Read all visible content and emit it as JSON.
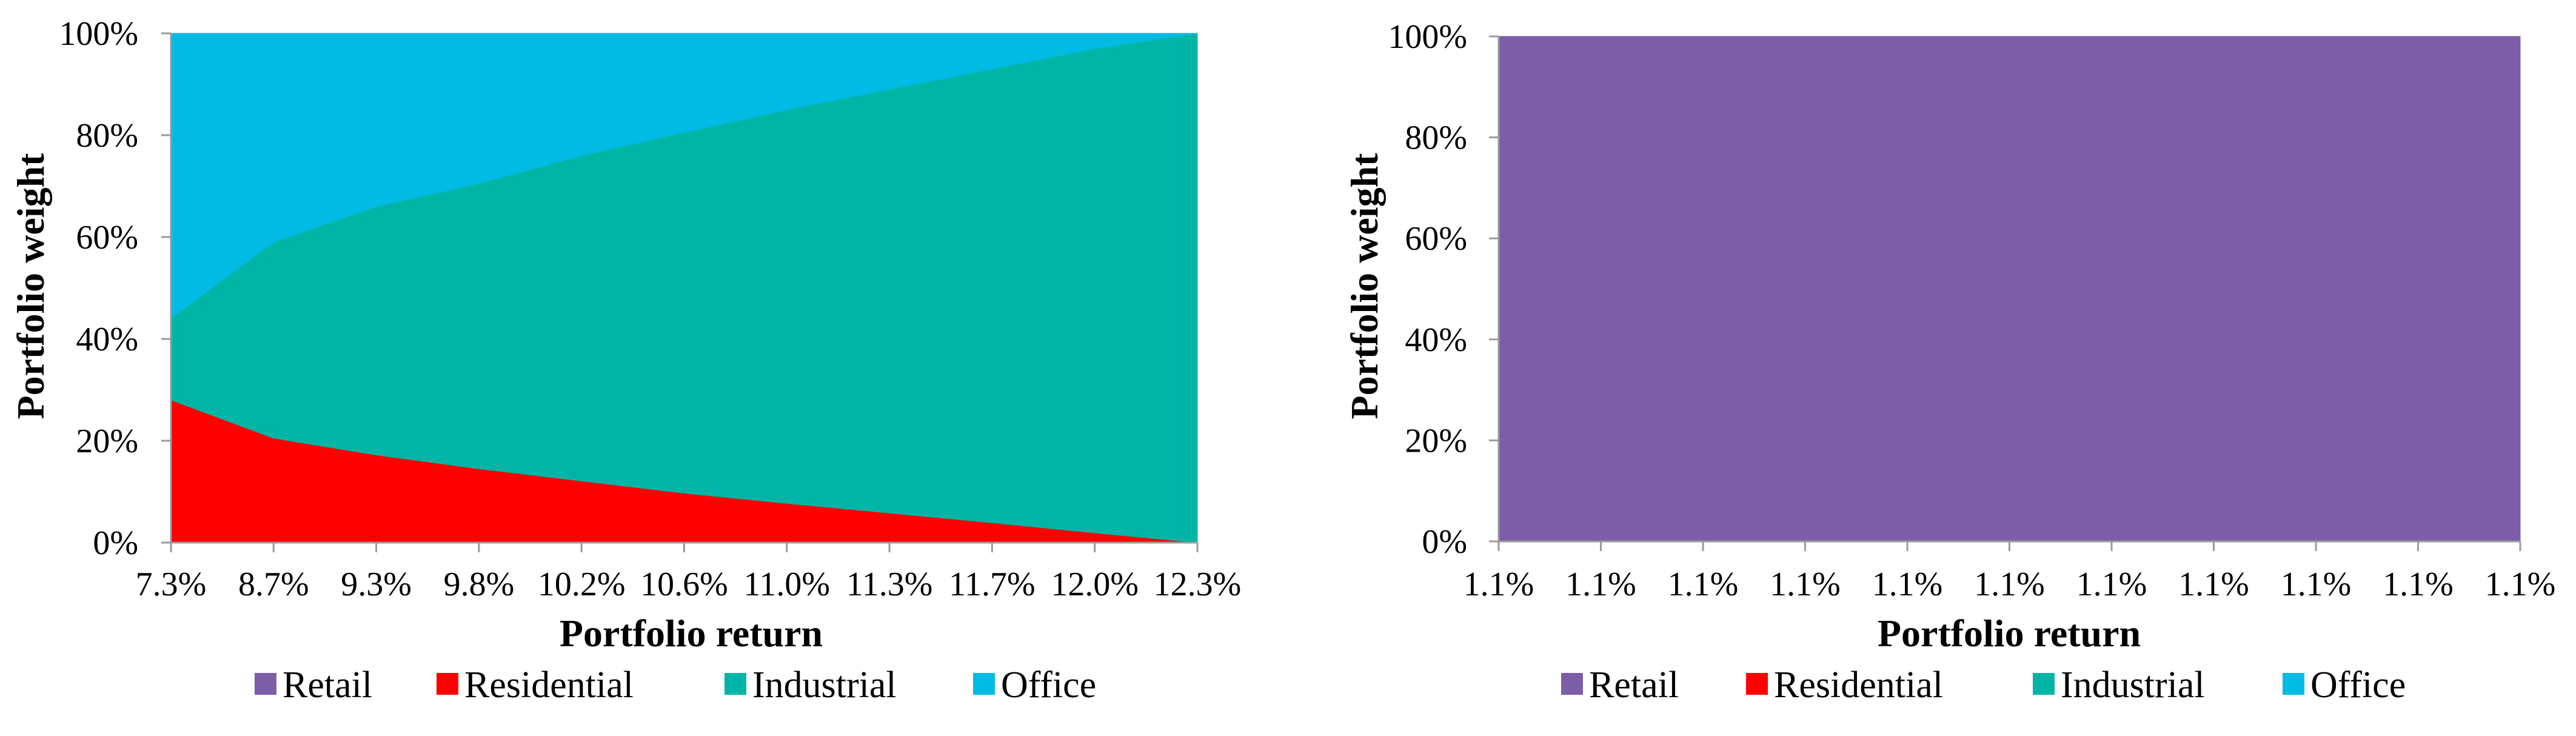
{
  "colors": {
    "Retail": "#7B5EA7",
    "Residential": "#FF0000",
    "Industrial": "#00B5A5",
    "Office": "#00BBE3"
  },
  "chart_data": [
    {
      "type": "area",
      "stacked": true,
      "xlabel": "Portfolio return",
      "ylabel": "Portfolio weight",
      "categories": [
        "7.3%",
        "8.7%",
        "9.3%",
        "9.8%",
        "10.2%",
        "10.6%",
        "11.0%",
        "11.3%",
        "11.7%",
        "12.0%",
        "12.3%"
      ],
      "yticks": [
        "0%",
        "20%",
        "40%",
        "60%",
        "80%",
        "100%"
      ],
      "ylim": [
        0,
        1
      ],
      "legend": [
        "Retail",
        "Residential",
        "Industrial",
        "Office"
      ],
      "legend_position": "bottom",
      "series": [
        {
          "name": "Retail",
          "values": [
            0,
            0,
            0,
            0,
            0,
            0,
            0,
            0,
            0,
            0,
            0
          ]
        },
        {
          "name": "Residential",
          "values": [
            0.28,
            0.205,
            0.172,
            0.145,
            0.121,
            0.097,
            0.077,
            0.058,
            0.039,
            0.019,
            0
          ]
        },
        {
          "name": "Industrial",
          "values": [
            0.16,
            0.385,
            0.488,
            0.56,
            0.639,
            0.708,
            0.773,
            0.832,
            0.891,
            0.951,
            1.0
          ]
        },
        {
          "name": "Office",
          "values": [
            0.56,
            0.41,
            0.34,
            0.295,
            0.24,
            0.195,
            0.15,
            0.11,
            0.07,
            0.03,
            0
          ]
        }
      ]
    },
    {
      "type": "area",
      "stacked": true,
      "xlabel": "Portfolio return",
      "ylabel": "Portfolio weight",
      "categories": [
        "1.1%",
        "1.1%",
        "1.1%",
        "1.1%",
        "1.1%",
        "1.1%",
        "1.1%",
        "1.1%",
        "1.1%",
        "1.1%",
        "1.1%"
      ],
      "yticks": [
        "0%",
        "20%",
        "40%",
        "60%",
        "80%",
        "100%"
      ],
      "ylim": [
        0,
        1
      ],
      "legend": [
        "Retail",
        "Residential",
        "Industrial",
        "Office"
      ],
      "legend_position": "bottom",
      "series": [
        {
          "name": "Retail",
          "values": [
            1,
            1,
            1,
            1,
            1,
            1,
            1,
            1,
            1,
            1,
            1
          ]
        },
        {
          "name": "Residential",
          "values": [
            0,
            0,
            0,
            0,
            0,
            0,
            0,
            0,
            0,
            0,
            0
          ]
        },
        {
          "name": "Industrial",
          "values": [
            0,
            0,
            0,
            0,
            0,
            0,
            0,
            0,
            0,
            0,
            0
          ]
        },
        {
          "name": "Office",
          "values": [
            0,
            0,
            0,
            0,
            0,
            0,
            0,
            0,
            0,
            0,
            0
          ]
        }
      ]
    }
  ]
}
